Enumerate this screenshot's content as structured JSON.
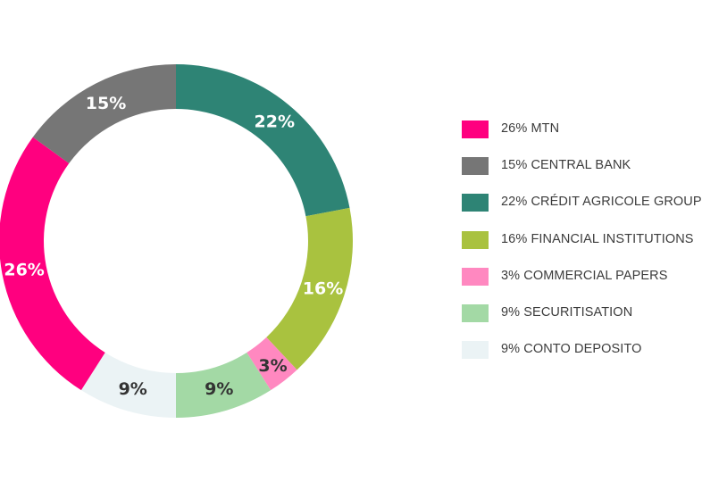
{
  "chart_data": {
    "type": "pie",
    "donut": true,
    "slices": [
      {
        "label": "CRÉDIT AGRICOLE GROUP",
        "value": 22,
        "display": "22%",
        "color": "#2e8475",
        "label_color": "#ffffff"
      },
      {
        "label": "FINANCIAL INSTITUTIONS",
        "value": 16,
        "display": "16%",
        "color": "#a9c23f",
        "label_color": "#ffffff"
      },
      {
        "label": "COMMERCIAL PAPERS",
        "value": 3,
        "display": "3%",
        "color": "#ff88c0",
        "label_color": "#333333"
      },
      {
        "label": "SECURITISATION",
        "value": 9,
        "display": "9%",
        "color": "#a3d9a5",
        "label_color": "#333333"
      },
      {
        "label": "CONTO DEPOSITO",
        "value": 9,
        "display": "9%",
        "color": "#ebf3f5",
        "label_color": "#333333"
      },
      {
        "label": "MTN",
        "value": 26,
        "display": "26%",
        "color": "#ff007f",
        "label_color": "#ffffff"
      },
      {
        "label": "CENTRAL BANK",
        "value": 15,
        "display": "15%",
        "color": "#767676",
        "label_color": "#ffffff"
      }
    ],
    "legend": [
      {
        "text": "26% MTN",
        "color": "#ff007f"
      },
      {
        "text": "15% CENTRAL BANK",
        "color": "#767676"
      },
      {
        "text": "22% CRÉDIT AGRICOLE GROUP",
        "color": "#2e8475"
      },
      {
        "text": "16% FINANCIAL INSTITUTIONS",
        "color": "#a9c23f"
      },
      {
        "text": "3% COMMERCIAL PAPERS",
        "color": "#ff88c0"
      },
      {
        "text": "9% SECURITISATION",
        "color": "#a3d9a5"
      },
      {
        "text": "9% CONTO DEPOSITO",
        "color": "#ebf3f5"
      }
    ],
    "legend_position": "right",
    "start_angle": "top, clockwise"
  }
}
